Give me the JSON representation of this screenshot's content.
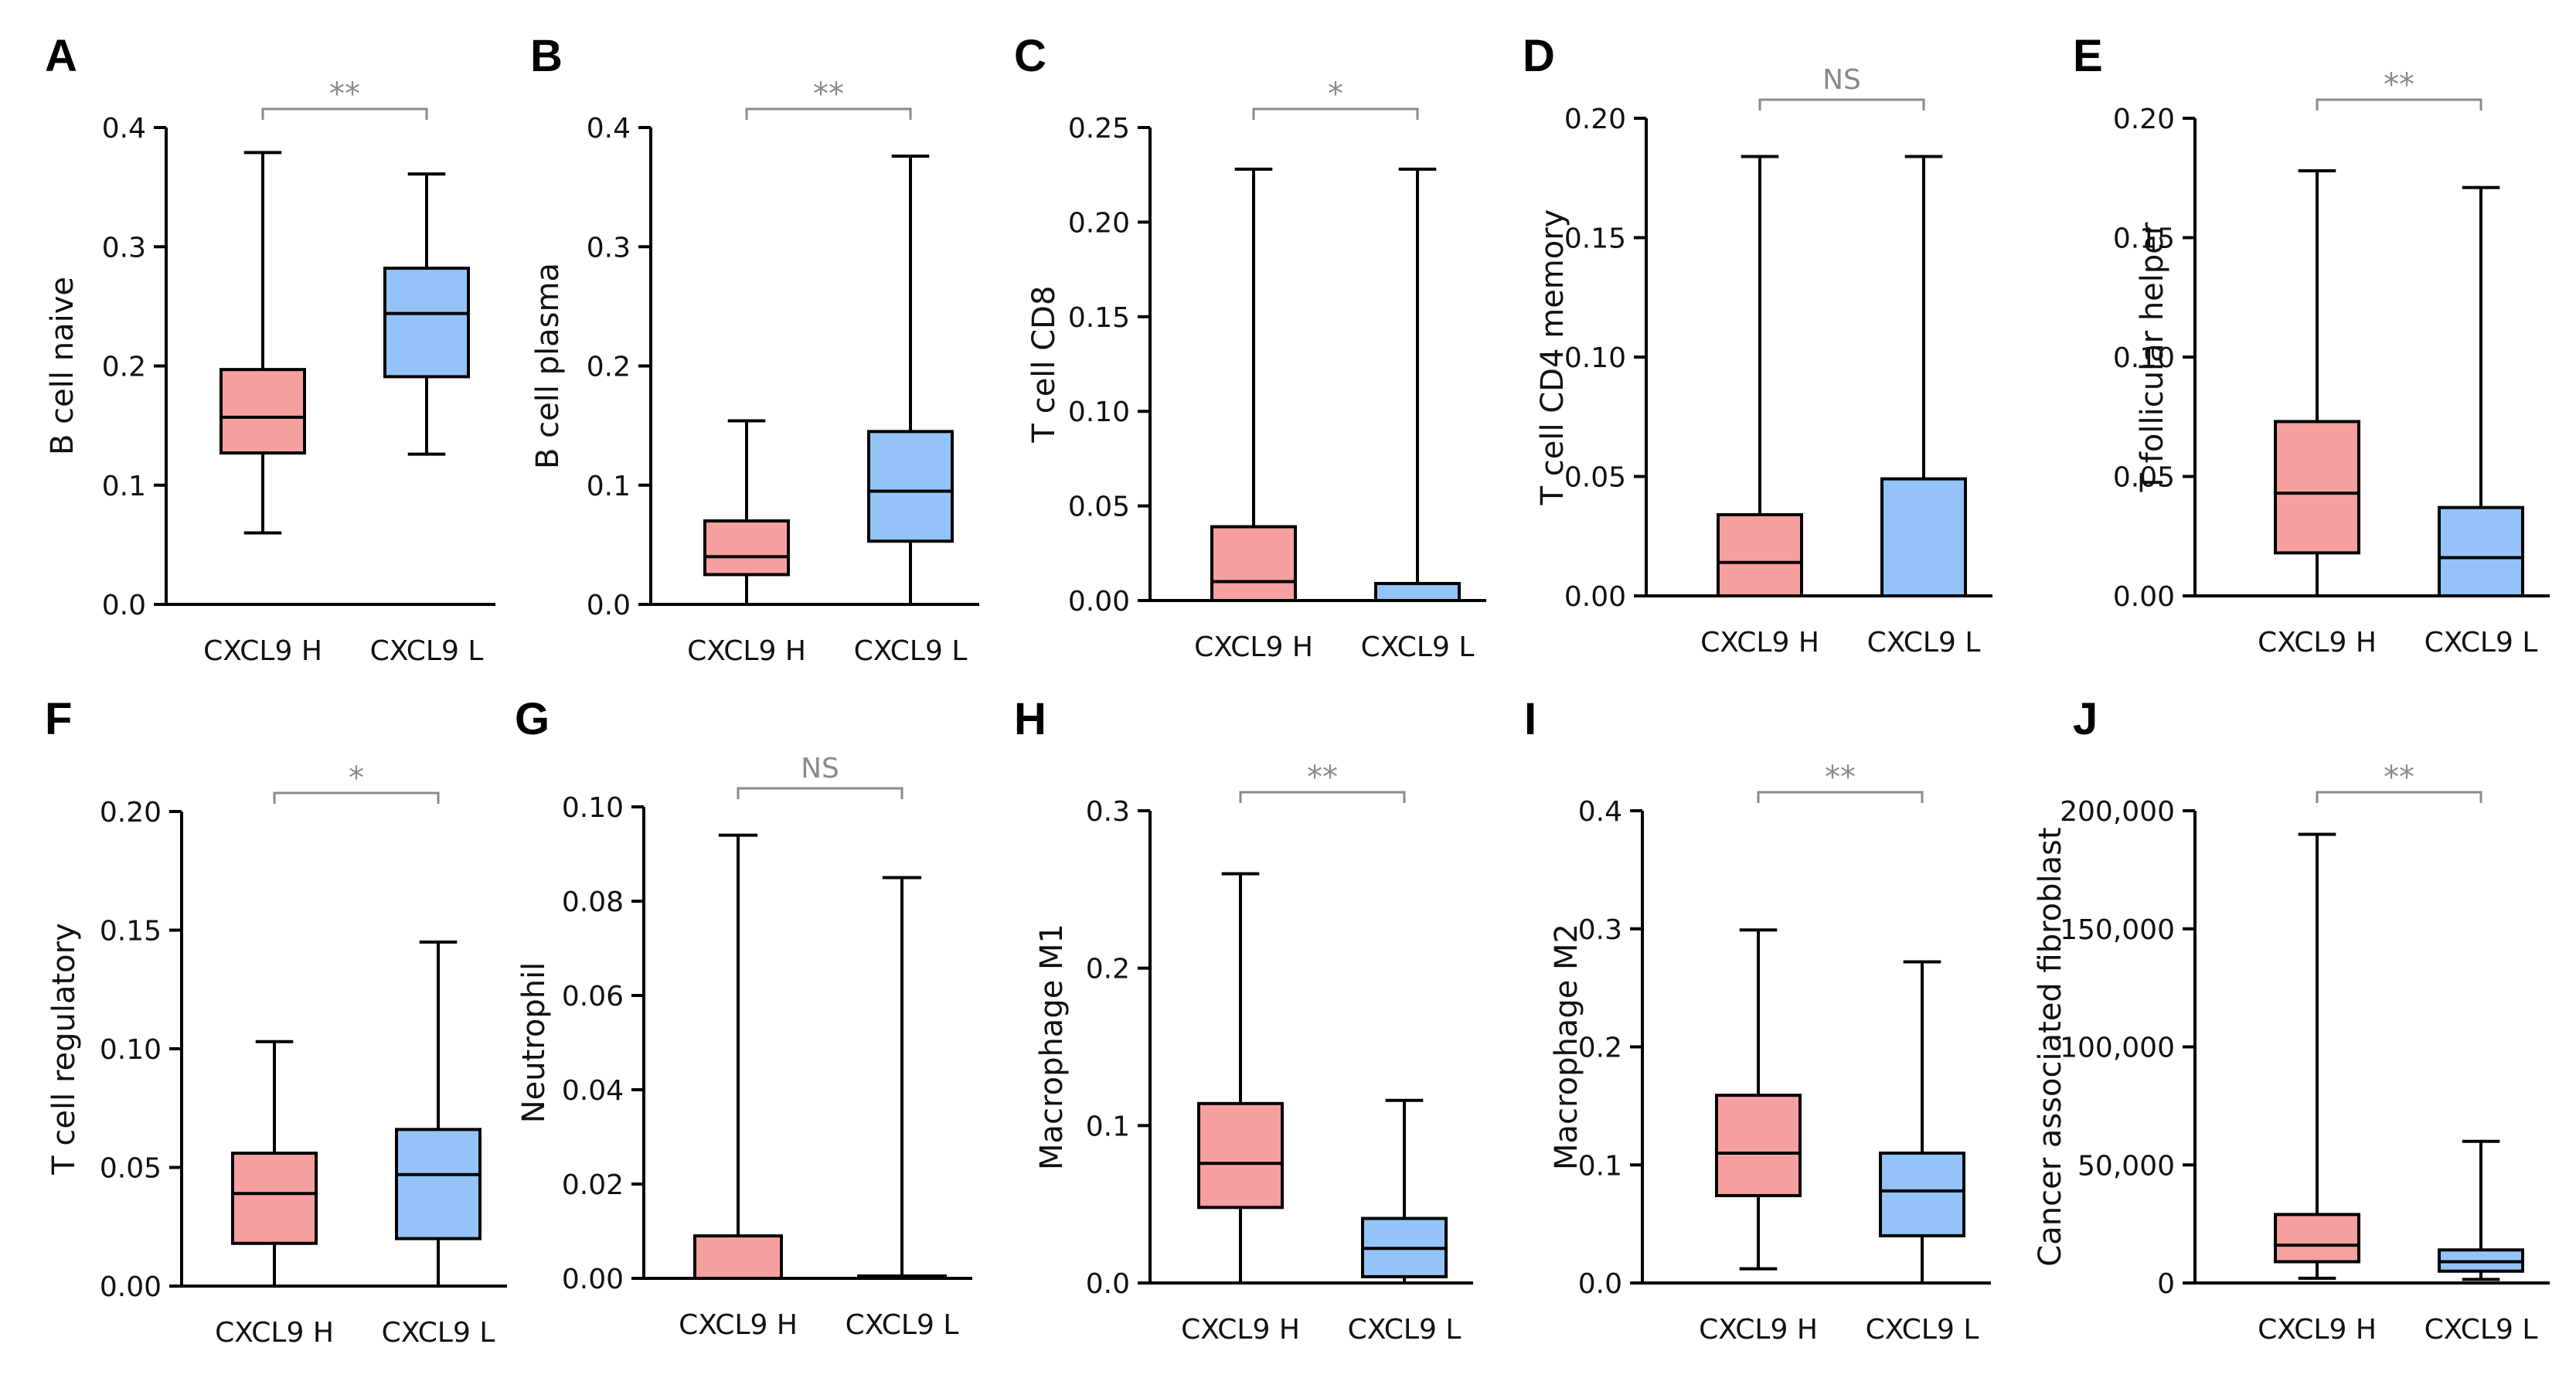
{
  "colors": {
    "high": "#f7a0a0",
    "low": "#94c4f7",
    "axis": "#000000",
    "significance": "#8a8a8a"
  },
  "chart_data": [
    {
      "panel": "A",
      "type": "box",
      "ylabel": "B cell naive",
      "categories": [
        "CXCL9 H",
        "CXCL9 L"
      ],
      "ylim": [
        0,
        0.4
      ],
      "yticks": [
        "0.0",
        "0.1",
        "0.2",
        "0.3",
        "0.4"
      ],
      "yticks_values": [
        0,
        0.1,
        0.2,
        0.3,
        0.4
      ],
      "boxes": [
        {
          "min": 0.06,
          "q1": 0.127,
          "median": 0.157,
          "q3": 0.197,
          "max": 0.379
        },
        {
          "min": 0.126,
          "q1": 0.191,
          "median": 0.244,
          "q3": 0.282,
          "max": 0.361
        }
      ],
      "significance": "**"
    },
    {
      "panel": "B",
      "type": "box",
      "ylabel": "B cell plasma",
      "categories": [
        "CXCL9 H",
        "CXCL9 L"
      ],
      "ylim": [
        0,
        0.4
      ],
      "yticks": [
        "0.0",
        "0.1",
        "0.2",
        "0.3",
        "0.4"
      ],
      "yticks_values": [
        0,
        0.1,
        0.2,
        0.3,
        0.4
      ],
      "boxes": [
        {
          "min": 0.0,
          "q1": 0.025,
          "median": 0.04,
          "q3": 0.07,
          "max": 0.154
        },
        {
          "min": 0.0,
          "q1": 0.053,
          "median": 0.095,
          "q3": 0.145,
          "max": 0.376
        }
      ],
      "significance": "**"
    },
    {
      "panel": "C",
      "type": "box",
      "ylabel": "T cell CD8",
      "categories": [
        "CXCL9 H",
        "CXCL9 L"
      ],
      "ylim": [
        0,
        0.25
      ],
      "yticks": [
        "0.00",
        "0.05",
        "0.10",
        "0.15",
        "0.20",
        "0.25"
      ],
      "yticks_values": [
        0,
        0.05,
        0.1,
        0.15,
        0.2,
        0.25
      ],
      "boxes": [
        {
          "min": 0.0,
          "q1": 0.0,
          "median": 0.01,
          "q3": 0.039,
          "max": 0.228
        },
        {
          "min": 0.0,
          "q1": 0.0,
          "median": 0.0,
          "q3": 0.009,
          "max": 0.228
        }
      ],
      "significance": "*"
    },
    {
      "panel": "D",
      "type": "box",
      "ylabel": "T cell CD4 memory",
      "categories": [
        "CXCL9 H",
        "CXCL9 L"
      ],
      "ylim": [
        0,
        0.2
      ],
      "yticks": [
        "0.00",
        "0.05",
        "0.10",
        "0.15",
        "0.20"
      ],
      "yticks_values": [
        0,
        0.05,
        0.1,
        0.15,
        0.2
      ],
      "boxes": [
        {
          "min": 0.0,
          "q1": 0.0,
          "median": 0.014,
          "q3": 0.034,
          "max": 0.184
        },
        {
          "min": 0.0,
          "q1": 0.0,
          "median": 0.0,
          "q3": 0.049,
          "max": 0.184
        }
      ],
      "significance": "NS"
    },
    {
      "panel": "E",
      "type": "box",
      "ylabel": "T follicular helper",
      "categories": [
        "CXCL9 H",
        "CXCL9 L"
      ],
      "ylim": [
        0,
        0.2
      ],
      "yticks": [
        "0.00",
        "0.05",
        "0.10",
        "0.15",
        "0.20"
      ],
      "yticks_values": [
        0,
        0.05,
        0.1,
        0.15,
        0.2
      ],
      "boxes": [
        {
          "min": 0.0,
          "q1": 0.018,
          "median": 0.043,
          "q3": 0.073,
          "max": 0.178
        },
        {
          "min": 0.0,
          "q1": 0.0,
          "median": 0.016,
          "q3": 0.037,
          "max": 0.171
        }
      ],
      "significance": "**"
    },
    {
      "panel": "F",
      "type": "box",
      "ylabel": "T cell regulatory",
      "categories": [
        "CXCL9 H",
        "CXCL9 L"
      ],
      "ylim": [
        0,
        0.2
      ],
      "yticks": [
        "0.00",
        "0.05",
        "0.10",
        "0.15",
        "0.20"
      ],
      "yticks_values": [
        0,
        0.05,
        0.1,
        0.15,
        0.2
      ],
      "boxes": [
        {
          "min": 0.0,
          "q1": 0.018,
          "median": 0.039,
          "q3": 0.056,
          "max": 0.103
        },
        {
          "min": 0.0,
          "q1": 0.02,
          "median": 0.047,
          "q3": 0.066,
          "max": 0.145
        }
      ],
      "significance": "*"
    },
    {
      "panel": "G",
      "type": "box",
      "ylabel": "Neutrophil",
      "categories": [
        "CXCL9 H",
        "CXCL9 L"
      ],
      "ylim": [
        0,
        0.1
      ],
      "yticks": [
        "0.00",
        "0.02",
        "0.04",
        "0.06",
        "0.08",
        "0.10"
      ],
      "yticks_values": [
        0,
        0.02,
        0.04,
        0.06,
        0.08,
        0.1
      ],
      "boxes": [
        {
          "min": 0.0,
          "q1": 0.0,
          "median": 0.0,
          "q3": 0.009,
          "max": 0.094
        },
        {
          "min": 0.0,
          "q1": 0.0,
          "median": 0.0,
          "q3": 0.0005,
          "max": 0.085
        }
      ],
      "significance": "NS"
    },
    {
      "panel": "H",
      "type": "box",
      "ylabel": "Macrophage M1",
      "categories": [
        "CXCL9 H",
        "CXCL9 L"
      ],
      "ylim": [
        0,
        0.3
      ],
      "yticks": [
        "0.0",
        "0.1",
        "0.2",
        "0.3"
      ],
      "yticks_values": [
        0,
        0.1,
        0.2,
        0.3
      ],
      "boxes": [
        {
          "min": 0.0,
          "q1": 0.048,
          "median": 0.076,
          "q3": 0.114,
          "max": 0.26
        },
        {
          "min": 0.0,
          "q1": 0.004,
          "median": 0.022,
          "q3": 0.041,
          "max": 0.116
        }
      ],
      "significance": "**"
    },
    {
      "panel": "I",
      "type": "box",
      "ylabel": "Macrophage M2",
      "categories": [
        "CXCL9 H",
        "CXCL9 L"
      ],
      "ylim": [
        0,
        0.4
      ],
      "yticks": [
        "0.0",
        "0.1",
        "0.2",
        "0.3",
        "0.4"
      ],
      "yticks_values": [
        0,
        0.1,
        0.2,
        0.3,
        0.4
      ],
      "boxes": [
        {
          "min": 0.012,
          "q1": 0.074,
          "median": 0.11,
          "q3": 0.159,
          "max": 0.299
        },
        {
          "min": 0.0,
          "q1": 0.04,
          "median": 0.078,
          "q3": 0.11,
          "max": 0.272
        }
      ],
      "significance": "**"
    },
    {
      "panel": "J",
      "type": "box",
      "ylabel": "Cancer associated fibroblast",
      "categories": [
        "CXCL9 H",
        "CXCL9 L"
      ],
      "ylim": [
        0,
        200000
      ],
      "yticks": [
        "0",
        "50,000",
        "100,000",
        "150,000",
        "200,000"
      ],
      "yticks_values": [
        0,
        50000,
        100000,
        150000,
        200000
      ],
      "boxes": [
        {
          "min": 2000,
          "q1": 9000,
          "median": 16000,
          "q3": 29000,
          "max": 190000
        },
        {
          "min": 1500,
          "q1": 5000,
          "median": 9000,
          "q3": 14000,
          "max": 60000
        }
      ],
      "significance": "**"
    }
  ]
}
